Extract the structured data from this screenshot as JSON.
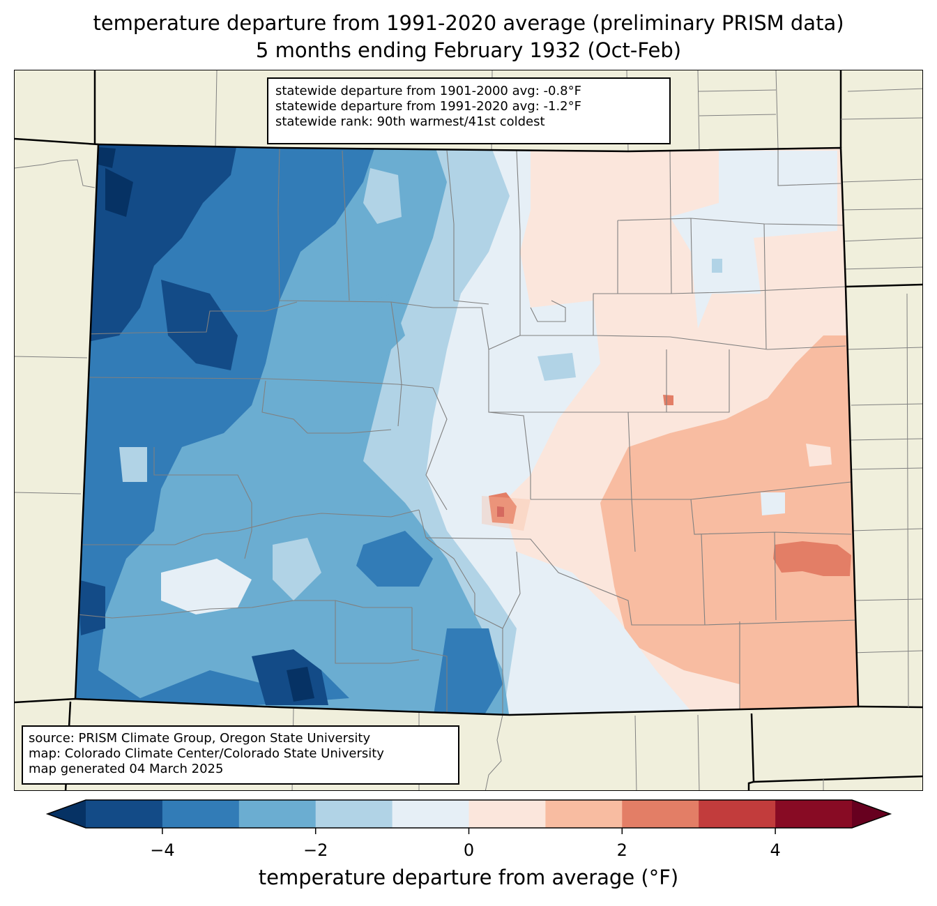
{
  "title": {
    "line1": "temperature departure from 1991-2020 average (preliminary PRISM data)",
    "line2": "5 months ending February 1932 (Oct-Feb)"
  },
  "stats": {
    "line1": "statewide departure from 1901-2000 avg: -0.8°F",
    "line2": "statewide departure from 1991-2020 avg: -1.2°F",
    "line3": "statewide rank: 90th warmest/41st coldest"
  },
  "source": {
    "line1": "source: PRISM Climate Group, Oregon State University",
    "line2": "map: Colorado Climate Center/Colorado State University",
    "line3": "map generated 04 March 2025"
  },
  "colorbar": {
    "label": "temperature departure from average (°F)",
    "ticks": [
      "−4",
      "−2",
      "0",
      "2",
      "4"
    ],
    "bins": [
      {
        "range": "-5 to -4",
        "color": "#134b87"
      },
      {
        "range": "-4 to -3",
        "color": "#327cb7"
      },
      {
        "range": "-3 to -2",
        "color": "#6badd1"
      },
      {
        "range": "-2 to -1",
        "color": "#b1d3e6"
      },
      {
        "range": "-1 to 0",
        "color": "#e6eff6"
      },
      {
        "range": "0 to 1",
        "color": "#fbe6dc"
      },
      {
        "range": "1 to 2",
        "color": "#f8bca1"
      },
      {
        "range": "2 to 3",
        "color": "#e37e66"
      },
      {
        "range": "3 to 4",
        "color": "#c23c3c"
      },
      {
        "range": "4 to 5",
        "color": "#880b24"
      }
    ],
    "under_color": "#063264",
    "over_color": "#67001f"
  },
  "colors": {
    "land_background": "#f0efdc",
    "state_border": "#000000",
    "county_border": "#808080"
  }
}
